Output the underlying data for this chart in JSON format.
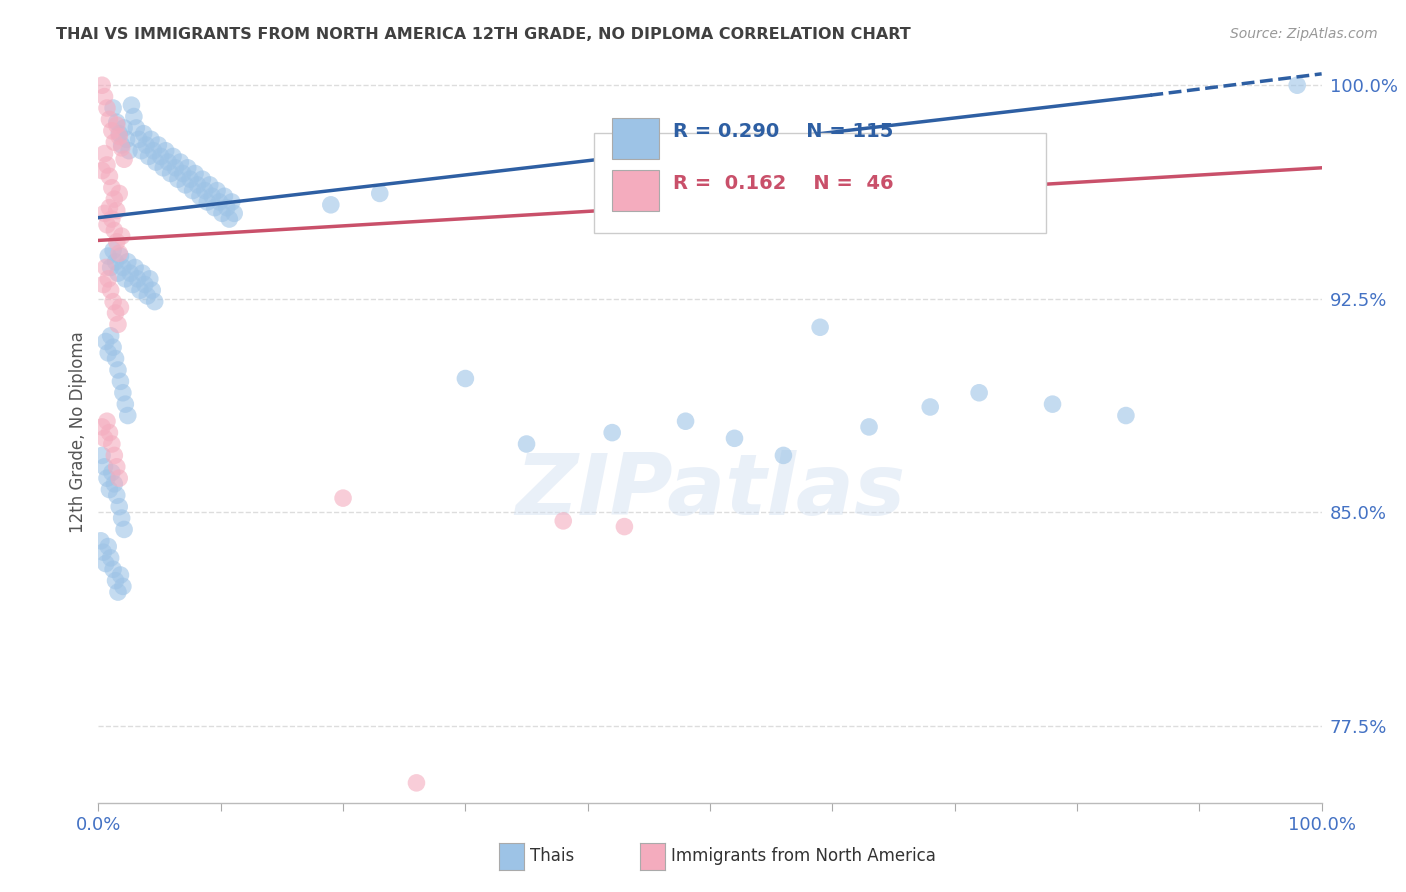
{
  "title": "THAI VS IMMIGRANTS FROM NORTH AMERICA 12TH GRADE, NO DIPLOMA CORRELATION CHART",
  "source": "Source: ZipAtlas.com",
  "ylabel": "12th Grade, No Diploma",
  "xlim": [
    0.0,
    1.0
  ],
  "ylim": [
    0.748,
    1.008
  ],
  "yticks": [
    0.775,
    0.85,
    0.925,
    1.0
  ],
  "ytick_labels": [
    "77.5%",
    "85.0%",
    "92.5%",
    "100.0%"
  ],
  "xticks": [
    0.0,
    0.1,
    0.2,
    0.3,
    0.4,
    0.5,
    0.6,
    0.7,
    0.8,
    0.9,
    1.0
  ],
  "blue_color": "#9DC3E6",
  "pink_color": "#F4ACBE",
  "blue_line_color": "#2E5FA3",
  "pink_line_color": "#C9506A",
  "R_blue": 0.29,
  "N_blue": 115,
  "R_pink": 0.162,
  "N_pink": 46,
  "blue_scatter_x": [
    0.012,
    0.015,
    0.017,
    0.019,
    0.021,
    0.023,
    0.025,
    0.027,
    0.029,
    0.031,
    0.033,
    0.035,
    0.037,
    0.039,
    0.041,
    0.043,
    0.045,
    0.047,
    0.049,
    0.051,
    0.053,
    0.055,
    0.057,
    0.059,
    0.061,
    0.063,
    0.065,
    0.067,
    0.069,
    0.071,
    0.073,
    0.075,
    0.077,
    0.079,
    0.081,
    0.083,
    0.085,
    0.087,
    0.089,
    0.091,
    0.093,
    0.095,
    0.097,
    0.099,
    0.101,
    0.103,
    0.105,
    0.107,
    0.109,
    0.111,
    0.008,
    0.01,
    0.012,
    0.014,
    0.016,
    0.018,
    0.02,
    0.022,
    0.024,
    0.026,
    0.028,
    0.03,
    0.032,
    0.034,
    0.036,
    0.038,
    0.04,
    0.042,
    0.044,
    0.046,
    0.006,
    0.008,
    0.01,
    0.012,
    0.014,
    0.016,
    0.018,
    0.02,
    0.022,
    0.024,
    0.003,
    0.005,
    0.007,
    0.009,
    0.011,
    0.013,
    0.015,
    0.017,
    0.019,
    0.021,
    0.002,
    0.004,
    0.006,
    0.008,
    0.01,
    0.012,
    0.014,
    0.016,
    0.018,
    0.02,
    0.19,
    0.23,
    0.3,
    0.35,
    0.42,
    0.48,
    0.52,
    0.56,
    0.59,
    0.63,
    0.68,
    0.72,
    0.78,
    0.84,
    0.98
  ],
  "blue_scatter_y": [
    0.992,
    0.987,
    0.983,
    0.979,
    0.985,
    0.981,
    0.977,
    0.993,
    0.989,
    0.985,
    0.981,
    0.977,
    0.983,
    0.979,
    0.975,
    0.981,
    0.977,
    0.973,
    0.979,
    0.975,
    0.971,
    0.977,
    0.973,
    0.969,
    0.975,
    0.971,
    0.967,
    0.973,
    0.969,
    0.965,
    0.971,
    0.967,
    0.963,
    0.969,
    0.965,
    0.961,
    0.967,
    0.963,
    0.959,
    0.965,
    0.961,
    0.957,
    0.963,
    0.959,
    0.955,
    0.961,
    0.957,
    0.953,
    0.959,
    0.955,
    0.94,
    0.936,
    0.942,
    0.938,
    0.934,
    0.94,
    0.936,
    0.932,
    0.938,
    0.934,
    0.93,
    0.936,
    0.932,
    0.928,
    0.934,
    0.93,
    0.926,
    0.932,
    0.928,
    0.924,
    0.91,
    0.906,
    0.912,
    0.908,
    0.904,
    0.9,
    0.896,
    0.892,
    0.888,
    0.884,
    0.87,
    0.866,
    0.862,
    0.858,
    0.864,
    0.86,
    0.856,
    0.852,
    0.848,
    0.844,
    0.84,
    0.836,
    0.832,
    0.838,
    0.834,
    0.83,
    0.826,
    0.822,
    0.828,
    0.824,
    0.958,
    0.962,
    0.897,
    0.874,
    0.878,
    0.882,
    0.876,
    0.87,
    0.915,
    0.88,
    0.887,
    0.892,
    0.888,
    0.884,
    1.0
  ],
  "pink_scatter_x": [
    0.003,
    0.005,
    0.007,
    0.009,
    0.011,
    0.013,
    0.015,
    0.017,
    0.019,
    0.021,
    0.003,
    0.005,
    0.007,
    0.009,
    0.011,
    0.013,
    0.015,
    0.017,
    0.005,
    0.007,
    0.009,
    0.011,
    0.013,
    0.015,
    0.017,
    0.019,
    0.004,
    0.006,
    0.008,
    0.01,
    0.012,
    0.014,
    0.016,
    0.018,
    0.003,
    0.005,
    0.007,
    0.009,
    0.011,
    0.013,
    0.015,
    0.017,
    0.2,
    0.26,
    0.38,
    0.43
  ],
  "pink_scatter_y": [
    1.0,
    0.996,
    0.992,
    0.988,
    0.984,
    0.98,
    0.986,
    0.982,
    0.978,
    0.974,
    0.97,
    0.976,
    0.972,
    0.968,
    0.964,
    0.96,
    0.956,
    0.962,
    0.955,
    0.951,
    0.957,
    0.953,
    0.949,
    0.945,
    0.941,
    0.947,
    0.93,
    0.936,
    0.932,
    0.928,
    0.924,
    0.92,
    0.916,
    0.922,
    0.88,
    0.876,
    0.882,
    0.878,
    0.874,
    0.87,
    0.866,
    0.862,
    0.855,
    0.755,
    0.847,
    0.845
  ],
  "background_color": "#ffffff",
  "grid_color": "#DDDDDD",
  "axis_color": "#4472C4",
  "title_color": "#404040",
  "blue_trend_start_x": 0.0,
  "blue_trend_start_y": 0.9535,
  "blue_trend_solid_end_x": 0.86,
  "blue_trend_solid_end_y": 0.9965,
  "blue_trend_dash_end_x": 1.0,
  "blue_trend_dash_end_y": 1.004,
  "pink_trend_start_x": 0.0,
  "pink_trend_start_y": 0.9455,
  "pink_trend_end_x": 1.0,
  "pink_trend_end_y": 0.971
}
